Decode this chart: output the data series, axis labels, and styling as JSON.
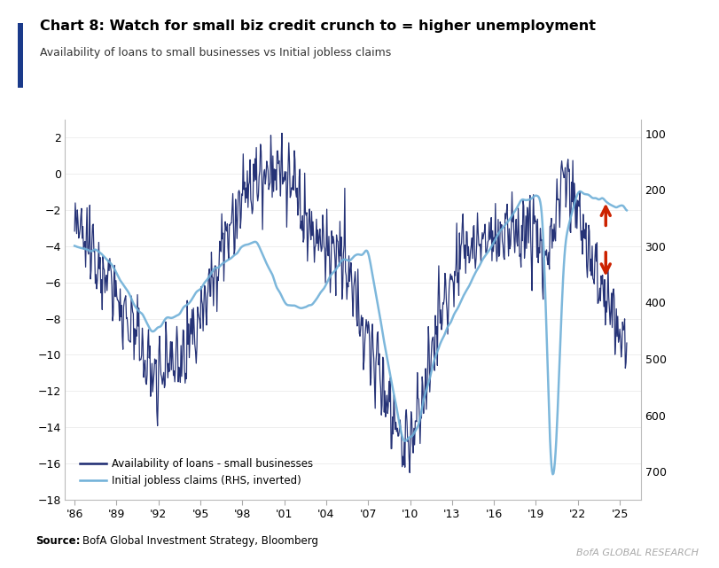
{
  "title": "Chart 8: Watch for small biz credit crunch to = higher unemployment",
  "subtitle": "Availability of loans to small businesses vs Initial jobless claims",
  "source": "BofA Global Investment Strategy, Bloomberg",
  "watermark": "BofA GLOBAL RESEARCH",
  "lhs_ylim": [
    -18,
    3
  ],
  "rhs_ylim": [
    750,
    75
  ],
  "lhs_yticks": [
    -18,
    -16,
    -14,
    -12,
    -10,
    -8,
    -6,
    -4,
    -2,
    0,
    2
  ],
  "rhs_yticks": [
    100,
    200,
    300,
    400,
    500,
    600,
    700
  ],
  "xtick_labels": [
    "'86",
    "'89",
    "'92",
    "'95",
    "'98",
    "'01",
    "'04",
    "'07",
    "'10",
    "'13",
    "'16",
    "'19",
    "'22",
    "'25"
  ],
  "dark_blue": "#1a2870",
  "light_blue": "#6fb0d8",
  "red_arrow": "#cc2200",
  "bg_color": "#ffffff",
  "title_bar_color": "#1a3a8a"
}
